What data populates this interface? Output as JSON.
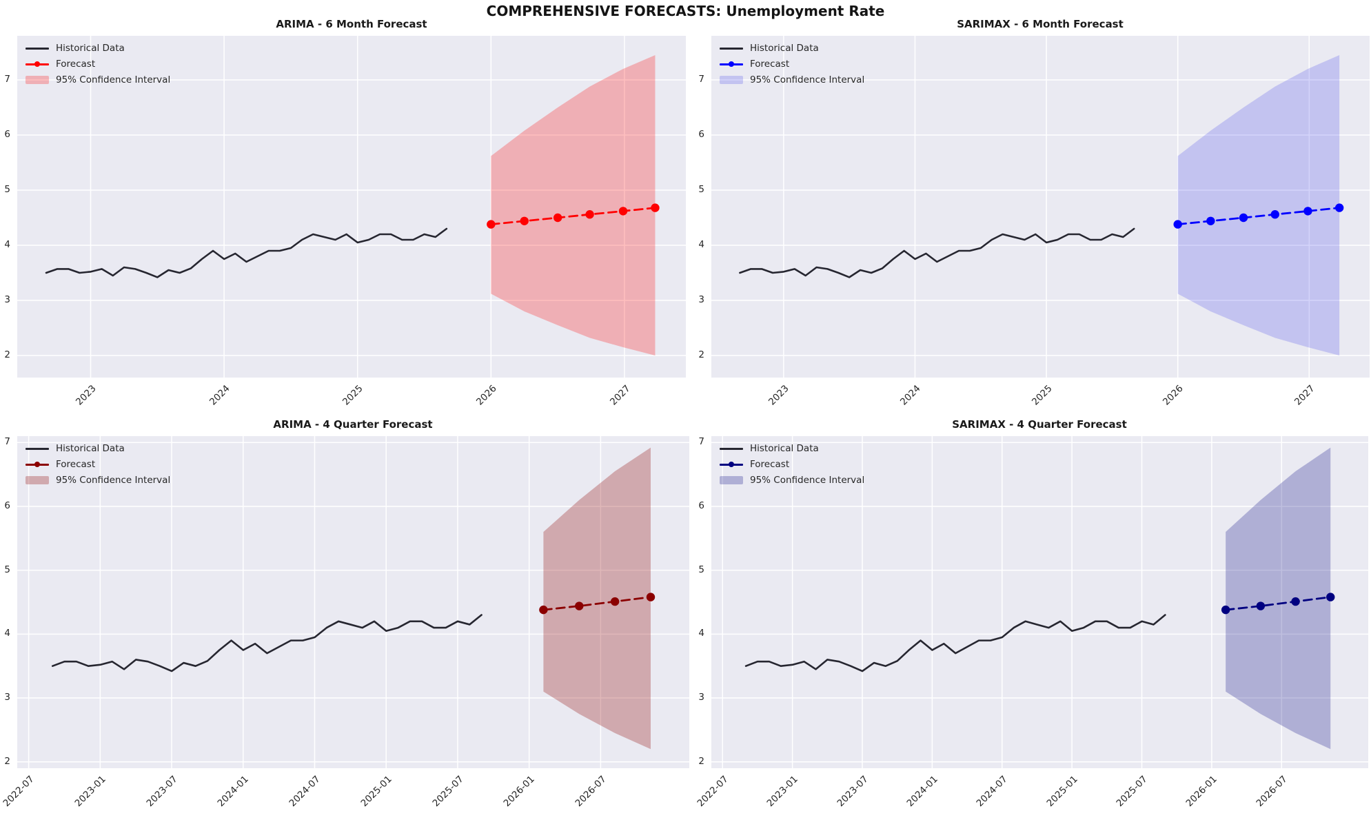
{
  "figure_title": "COMPREHENSIVE FORECASTS: Unemployment Rate",
  "legend_labels": {
    "historical": "Historical Data",
    "forecast": "Forecast",
    "ci": "95% Confidence Interval"
  },
  "style": {
    "plot_bg": "#eaeaf2",
    "grid_color": "#ffffff",
    "historical_color": "#262630",
    "text_color": "#262626"
  },
  "chart_data": {
    "type": "line",
    "grid": true,
    "legend_position": "upper-left",
    "shared_historical": {
      "x_start": 2022.667,
      "x_step": 0.083333,
      "values": [
        3.5,
        3.57,
        3.57,
        3.5,
        3.52,
        3.57,
        3.45,
        3.6,
        3.57,
        3.5,
        3.42,
        3.55,
        3.5,
        3.58,
        3.75,
        3.9,
        3.75,
        3.85,
        3.7,
        3.8,
        3.9,
        3.9,
        3.95,
        4.1,
        4.2,
        4.15,
        4.1,
        4.2,
        4.05,
        4.1,
        4.2,
        4.2,
        4.1,
        4.1,
        4.2,
        4.15,
        4.3
      ]
    },
    "subplots": [
      {
        "title": "ARIMA - 6 Month Forecast",
        "line_color": "#ff0000",
        "ci_fill": "rgba(255,0,0,0.25)",
        "xlim": [
          2022.45,
          2027.46
        ],
        "ylim": [
          1.6,
          7.8
        ],
        "y_ticks": [
          2,
          3,
          4,
          5,
          6,
          7
        ],
        "x_ticks": [
          {
            "v": 2023,
            "label": "2023"
          },
          {
            "v": 2024,
            "label": "2024"
          },
          {
            "v": 2025,
            "label": "2025"
          },
          {
            "v": 2026,
            "label": "2026"
          },
          {
            "v": 2027,
            "label": "2027"
          }
        ],
        "forecast": {
          "x": [
            2026.0,
            2026.25,
            2026.5,
            2026.74,
            2026.99,
            2027.23
          ],
          "values": [
            4.38,
            4.44,
            4.5,
            4.56,
            4.62,
            4.68
          ]
        },
        "ci": {
          "x": [
            2026.0,
            2026.25,
            2026.5,
            2026.74,
            2026.99,
            2027.23
          ],
          "upper": [
            5.62,
            6.08,
            6.5,
            6.88,
            7.2,
            7.45
          ],
          "lower": [
            3.12,
            2.8,
            2.55,
            2.32,
            2.15,
            2.0
          ]
        }
      },
      {
        "title": "SARIMAX - 6 Month Forecast",
        "line_color": "#0000ff",
        "ci_fill": "rgba(60,60,230,0.22)",
        "xlim": [
          2022.45,
          2027.46
        ],
        "ylim": [
          1.6,
          7.8
        ],
        "y_ticks": [
          2,
          3,
          4,
          5,
          6,
          7
        ],
        "x_ticks": [
          {
            "v": 2023,
            "label": "2023"
          },
          {
            "v": 2024,
            "label": "2024"
          },
          {
            "v": 2025,
            "label": "2025"
          },
          {
            "v": 2026,
            "label": "2026"
          },
          {
            "v": 2027,
            "label": "2027"
          }
        ],
        "forecast": {
          "x": [
            2026.0,
            2026.25,
            2026.5,
            2026.74,
            2026.99,
            2027.23
          ],
          "values": [
            4.38,
            4.44,
            4.5,
            4.56,
            4.62,
            4.68
          ]
        },
        "ci": {
          "x": [
            2026.0,
            2026.25,
            2026.5,
            2026.74,
            2026.99,
            2027.23
          ],
          "upper": [
            5.62,
            6.08,
            6.5,
            6.88,
            7.2,
            7.45
          ],
          "lower": [
            3.12,
            2.8,
            2.55,
            2.32,
            2.15,
            2.0
          ]
        }
      },
      {
        "title": "ARIMA - 4 Quarter Forecast",
        "line_color": "#8b0000",
        "ci_fill": "rgba(139,0,0,0.28)",
        "xlim": [
          2022.42,
          2027.12
        ],
        "ylim": [
          1.9,
          7.1
        ],
        "y_ticks": [
          2,
          3,
          4,
          5,
          6,
          7
        ],
        "x_ticks": [
          {
            "v": 2022.5,
            "label": "2022-07"
          },
          {
            "v": 2023.0,
            "label": "2023-01"
          },
          {
            "v": 2023.5,
            "label": "2023-07"
          },
          {
            "v": 2024.0,
            "label": "2024-01"
          },
          {
            "v": 2024.5,
            "label": "2024-07"
          },
          {
            "v": 2025.0,
            "label": "2025-01"
          },
          {
            "v": 2025.5,
            "label": "2025-07"
          },
          {
            "v": 2026.0,
            "label": "2026-01"
          },
          {
            "v": 2026.5,
            "label": "2026-07"
          }
        ],
        "forecast": {
          "x": [
            2026.1,
            2026.35,
            2026.6,
            2026.85
          ],
          "values": [
            4.38,
            4.44,
            4.51,
            4.58
          ]
        },
        "ci": {
          "x": [
            2026.1,
            2026.35,
            2026.6,
            2026.85
          ],
          "upper": [
            5.6,
            6.1,
            6.55,
            6.92
          ],
          "lower": [
            3.1,
            2.75,
            2.45,
            2.2
          ]
        }
      },
      {
        "title": "SARIMAX - 4 Quarter Forecast",
        "line_color": "#000080",
        "ci_fill": "rgba(0,0,128,0.25)",
        "xlim": [
          2022.42,
          2027.12
        ],
        "ylim": [
          1.9,
          7.1
        ],
        "y_ticks": [
          2,
          3,
          4,
          5,
          6,
          7
        ],
        "x_ticks": [
          {
            "v": 2022.5,
            "label": "2022-07"
          },
          {
            "v": 2023.0,
            "label": "2023-01"
          },
          {
            "v": 2023.5,
            "label": "2023-07"
          },
          {
            "v": 2024.0,
            "label": "2024-01"
          },
          {
            "v": 2024.5,
            "label": "2024-07"
          },
          {
            "v": 2025.0,
            "label": "2025-01"
          },
          {
            "v": 2025.5,
            "label": "2025-07"
          },
          {
            "v": 2026.0,
            "label": "2026-01"
          },
          {
            "v": 2026.5,
            "label": "2026-07"
          }
        ],
        "forecast": {
          "x": [
            2026.1,
            2026.35,
            2026.6,
            2026.85
          ],
          "values": [
            4.38,
            4.44,
            4.51,
            4.58
          ]
        },
        "ci": {
          "x": [
            2026.1,
            2026.35,
            2026.6,
            2026.85
          ],
          "upper": [
            5.6,
            6.1,
            6.55,
            6.92
          ],
          "lower": [
            3.1,
            2.75,
            2.45,
            2.2
          ]
        }
      }
    ]
  },
  "layout_note_values": {
    "y_axis_ticks_shown": [
      "7",
      "6",
      "5",
      "4",
      "3",
      "2"
    ]
  }
}
